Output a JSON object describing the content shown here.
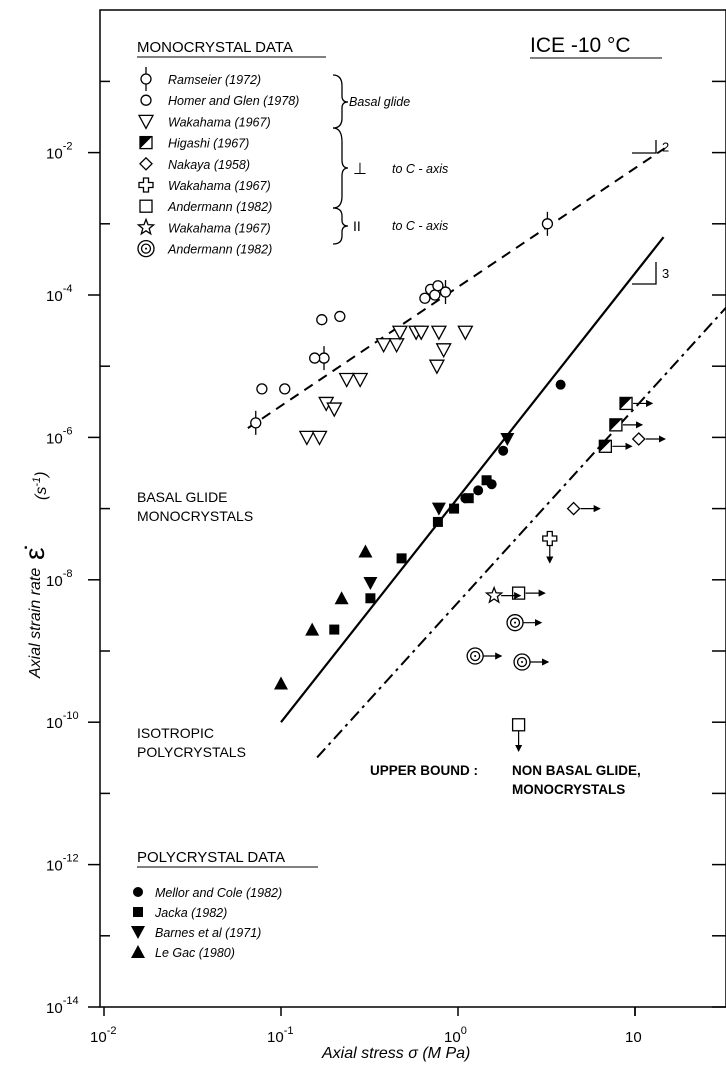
{
  "chart_data": {
    "type": "scatter",
    "title": "ICE -10 °C",
    "xlabel": "Axial stress  σ (M Pa)",
    "ylabel": "Axial strain rate",
    "ylabel_unit": "(s-1)",
    "ylabel_symbol": "ε̇",
    "x_scale": "log",
    "y_scale": "log",
    "xlim": [
      0.01,
      50
    ],
    "ylim": [
      1e-14,
      1
    ],
    "x_ticks": [
      {
        "value": 0.01,
        "base": "10",
        "exp": "-2"
      },
      {
        "value": 0.1,
        "base": "10",
        "exp": "-1"
      },
      {
        "value": 1,
        "base": "10",
        "exp": "0"
      },
      {
        "value": 10,
        "base": "10",
        "exp": ""
      }
    ],
    "y_ticks": [
      {
        "value": 1e-14,
        "base": "10",
        "exp": "-14"
      },
      {
        "value": 1e-12,
        "base": "10",
        "exp": "-12"
      },
      {
        "value": 1e-10,
        "base": "10",
        "exp": "-10"
      },
      {
        "value": 1e-08,
        "base": "10",
        "exp": "-8"
      },
      {
        "value": 1e-06,
        "base": "10",
        "exp": "-6"
      },
      {
        "value": 0.0001,
        "base": "10",
        "exp": "-4"
      },
      {
        "value": 0.01,
        "base": "10",
        "exp": "-2"
      }
    ],
    "monocrystal_heading": "MONOCRYSTAL DATA",
    "polycrystal_heading": "POLYCRYSTAL DATA",
    "group_labels": {
      "basal": "Basal glide",
      "perp": "to C - axis",
      "perp_symbol": "⊥",
      "par": "to C - axis",
      "par_symbol": "II"
    },
    "series": [
      {
        "name": "Ramseier (1972)",
        "marker": "circle-bar",
        "group": "mono",
        "points": [
          [
            0.072,
            1.6e-06
          ],
          [
            0.175,
            1.3e-05
          ],
          [
            0.85,
            0.00011
          ],
          [
            3.2,
            0.001
          ]
        ]
      },
      {
        "name": "Homer and Glen (1978)",
        "marker": "circle-open",
        "group": "mono",
        "points": [
          [
            0.078,
            4.8e-06
          ],
          [
            0.105,
            4.8e-06
          ],
          [
            0.155,
            1.3e-05
          ],
          [
            0.17,
            4.5e-05
          ],
          [
            0.215,
            5e-05
          ],
          [
            0.65,
            9e-05
          ],
          [
            0.7,
            0.00012
          ],
          [
            0.74,
            0.0001
          ],
          [
            0.77,
            0.000135
          ]
        ]
      },
      {
        "name": "Wakahama (1967)",
        "marker": "triangle-down-open",
        "group": "mono",
        "points": [
          [
            0.14,
            1e-06
          ],
          [
            0.165,
            1e-06
          ],
          [
            0.18,
            3e-06
          ],
          [
            0.2,
            2.5e-06
          ],
          [
            0.235,
            6.5e-06
          ],
          [
            0.28,
            6.5e-06
          ],
          [
            0.38,
            2e-05
          ],
          [
            0.45,
            2e-05
          ],
          [
            0.47,
            3e-05
          ],
          [
            0.58,
            3e-05
          ],
          [
            0.62,
            3e-05
          ],
          [
            0.78,
            3e-05
          ],
          [
            1.1,
            3e-05
          ],
          [
            0.76,
            1e-05
          ],
          [
            0.83,
            1.7e-05
          ]
        ]
      },
      {
        "name": "Higashi (1967)",
        "marker": "square-half",
        "group": "mono",
        "points": [
          [
            6.8,
            7.5e-07
          ],
          [
            7.8,
            1.5e-06
          ],
          [
            8.9,
            3e-06
          ]
        ]
      },
      {
        "name": "Nakaya (1958)",
        "marker": "diamond-open",
        "group": "mono",
        "points": [
          [
            4.5,
            1e-07
          ],
          [
            10.5,
            9.5e-07
          ]
        ]
      },
      {
        "name": "Wakahama (1967)",
        "marker": "cross-open",
        "group": "mono",
        "points": [
          [
            3.3,
            3.8e-08
          ]
        ]
      },
      {
        "name": "Andermann (1982)",
        "marker": "square-open",
        "group": "mono",
        "points": [
          [
            2.2,
            6.5e-09
          ],
          [
            2.2,
            9.2e-11
          ]
        ]
      },
      {
        "name": "Wakahama (1967)",
        "marker": "star-open",
        "group": "mono",
        "points": [
          [
            1.6,
            6e-09
          ]
        ]
      },
      {
        "name": "Andermann (1982)",
        "marker": "circle-double",
        "group": "mono",
        "points": [
          [
            2.1,
            2.5e-09
          ],
          [
            1.25,
            8.5e-10
          ],
          [
            2.3,
            7e-10
          ]
        ]
      },
      {
        "name": "Mellor and Cole (1982)",
        "marker": "circle-filled",
        "group": "poly",
        "points": [
          [
            1.1,
            1.4e-07
          ],
          [
            1.3,
            1.8e-07
          ],
          [
            1.55,
            2.2e-07
          ],
          [
            1.8,
            6.5e-07
          ],
          [
            3.8,
            5.5e-06
          ]
        ]
      },
      {
        "name": "Jacka (1982)",
        "marker": "square-filled",
        "group": "poly",
        "points": [
          [
            0.2,
            2e-09
          ],
          [
            0.32,
            5.5e-09
          ],
          [
            0.48,
            2e-08
          ],
          [
            0.77,
            6.5e-08
          ],
          [
            0.95,
            1e-07
          ],
          [
            1.15,
            1.4e-07
          ],
          [
            1.45,
            2.5e-07
          ]
        ]
      },
      {
        "name": "Barnes et al (1971)",
        "marker": "triangle-down-filled",
        "group": "poly",
        "points": [
          [
            0.32,
            9e-09
          ],
          [
            0.78,
            1e-07
          ],
          [
            1.9,
            9.5e-07
          ]
        ]
      },
      {
        "name": "Le Gac (1980)",
        "marker": "triangle-up-filled",
        "group": "poly",
        "points": [
          [
            0.1,
            3.5e-10
          ],
          [
            0.15,
            2e-09
          ],
          [
            0.22,
            5.5e-09
          ],
          [
            0.3,
            2.5e-08
          ]
        ]
      }
    ],
    "lines": [
      {
        "name": "BASAL GLIDE MONOCRYSTALS",
        "label_lines": [
          "BASAL GLIDE",
          "MONOCRYSTALS"
        ],
        "style": "dashed",
        "from": [
          0.065,
          1.35e-06
        ],
        "to": [
          14.7,
          0.0115
        ],
        "slope": "2"
      },
      {
        "name": "ISOTROPIC POLYCRYSTALS",
        "label_lines": [
          "ISOTROPIC",
          "POLYCRYSTALS"
        ],
        "style": "solid",
        "from": [
          0.1,
          1e-10
        ],
        "to": [
          14.5,
          0.00065
        ],
        "slope": "3"
      },
      {
        "name": "UPPER BOUND",
        "label_lines": [
          "UPPER BOUND :",
          "NON BASAL GLIDE,",
          "MONOCRYSTALS"
        ],
        "style": "dashdot",
        "from": [
          0.16,
          3.2e-11
        ],
        "to": [
          60,
          0.00035
        ]
      }
    ],
    "slope_labels": [
      "2",
      "3"
    ],
    "legend": "top-left",
    "grid": false
  }
}
